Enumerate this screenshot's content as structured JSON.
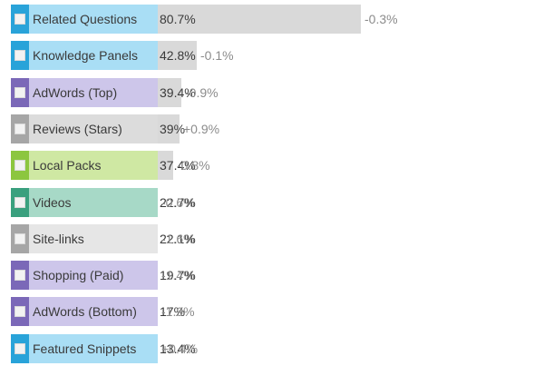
{
  "chart_data": {
    "type": "bar",
    "orientation": "horizontal",
    "xlim": [
      0,
      100
    ],
    "series": [
      {
        "categories": [
          "Related Questions",
          "Knowledge Panels",
          "AdWords (Top)",
          "Reviews (Stars)",
          "Local Packs",
          "Videos",
          "Site-links",
          "Shopping (Paid)",
          "AdWords (Bottom)",
          "Featured Snippets"
        ],
        "values": [
          80.7,
          42.8,
          39.4,
          39,
          37.4,
          22.7,
          22.1,
          19.7,
          17,
          13.4
        ],
        "value_labels": [
          "80.7%",
          "42.8%",
          "39.4%",
          "39%",
          "37.4%",
          "22.7%",
          "22.1%",
          "19.7%",
          "17%",
          "13.4%"
        ],
        "changes": [
          "-0.3%",
          "-0.1%",
          "-0.9%",
          "+0.9%",
          "-0.8%",
          "-0.6%",
          "-1.6%",
          "-1.4%",
          "-1.9%",
          "+0.4%"
        ],
        "accent_colors": [
          "#29a3d9",
          "#29a3d9",
          "#7b68b8",
          "#a6a6a6",
          "#8cc63f",
          "#3aa07e",
          "#a6a6a6",
          "#7b68b8",
          "#7b68b8",
          "#29a3d9"
        ],
        "label_backgrounds": [
          "#a9def5",
          "#a9def5",
          "#cdc6ea",
          "#dcdcdc",
          "#cfe8a3",
          "#a7d9c7",
          "#e6e6e6",
          "#cdc6ea",
          "#cdc6ea",
          "#a9def5"
        ]
      }
    ]
  }
}
